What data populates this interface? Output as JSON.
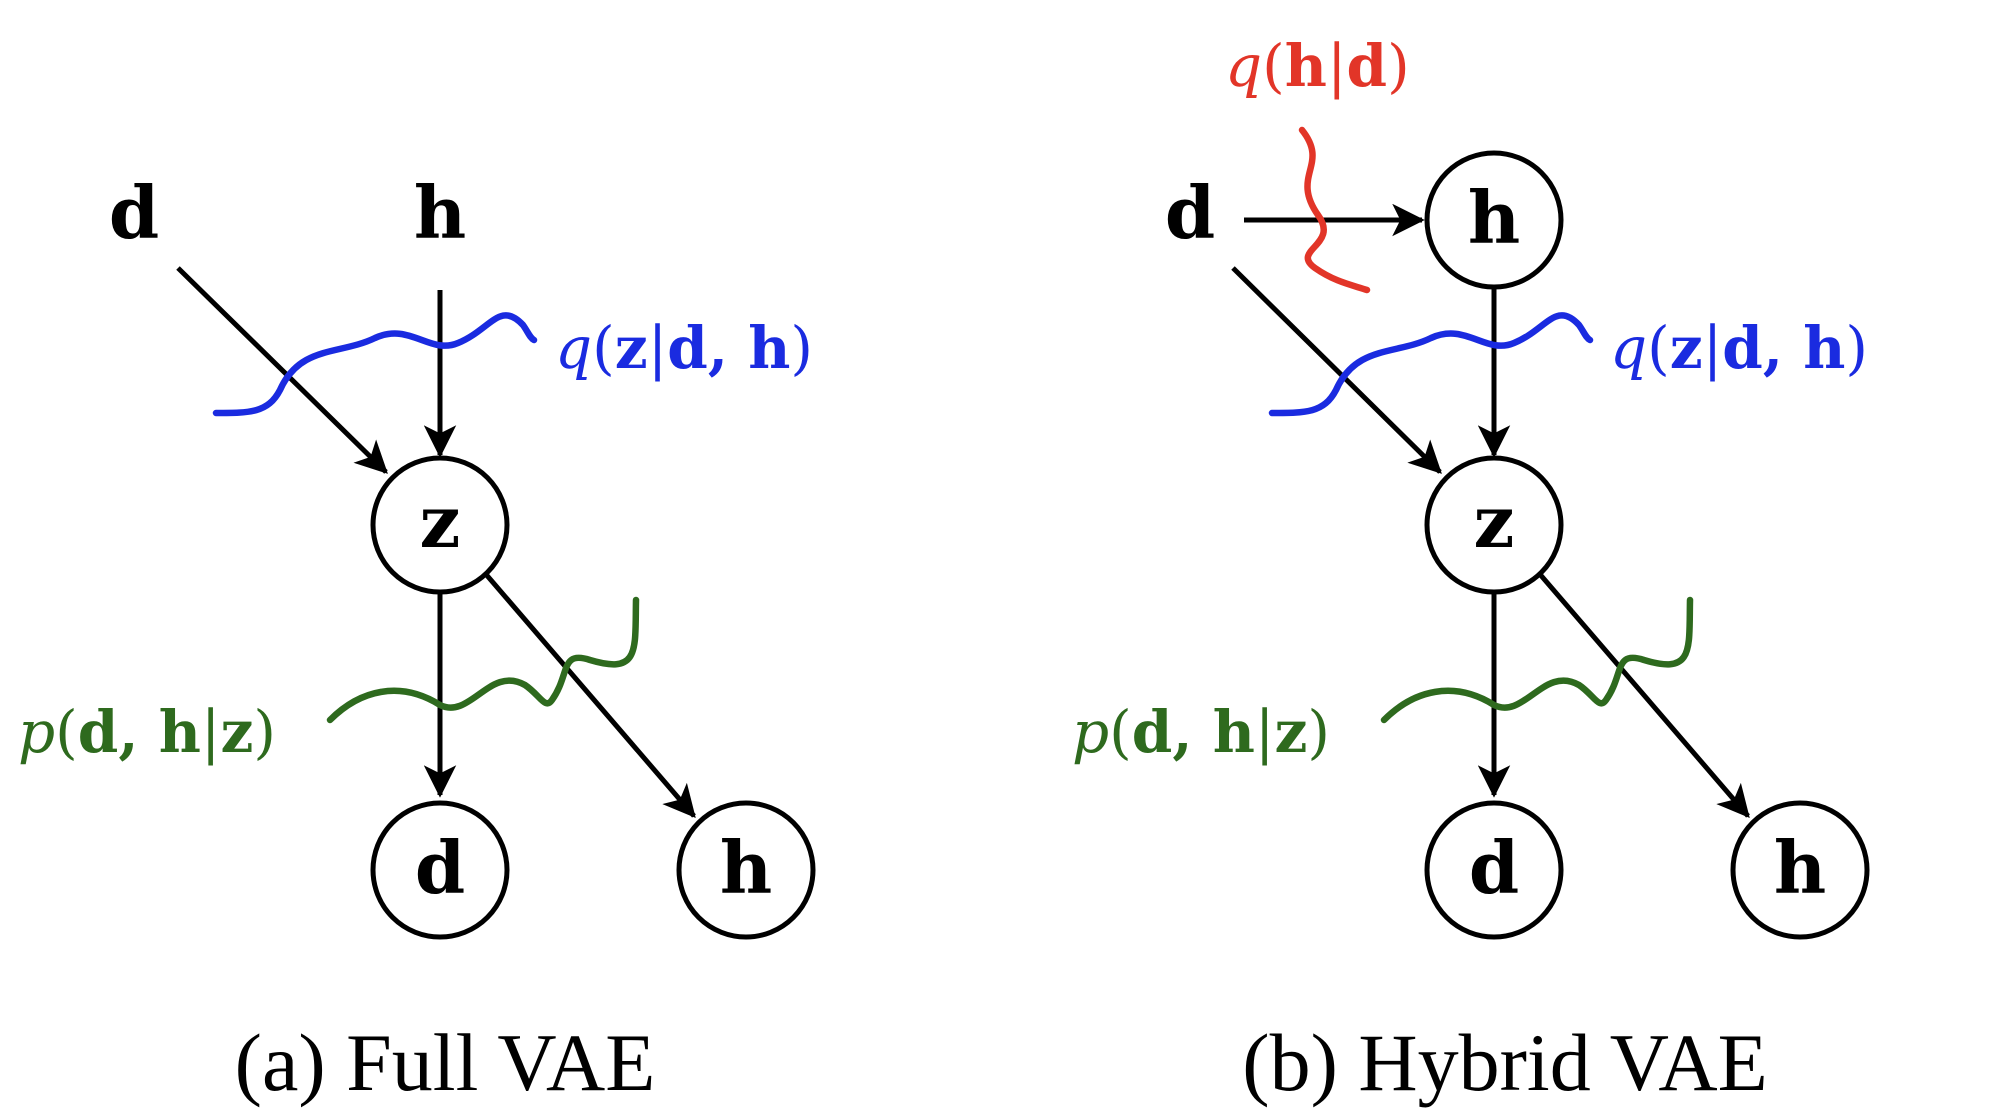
{
  "colors": {
    "encoder_blue": "#1a2be0",
    "decoder_green": "#2e6a1e",
    "inference_red": "#e23528",
    "node_stroke": "#000000"
  },
  "panels": [
    {
      "caption": "(a) Full VAE",
      "inputs": {
        "d": "d",
        "h": "h"
      },
      "nodes": {
        "z": "z",
        "d_out": "d",
        "h_out": "h"
      },
      "encoder": {
        "func": "q",
        "args_bold": "z",
        "sep": "|",
        "cond": "d, h"
      },
      "decoder": {
        "func": "p",
        "args_bold": "d, h",
        "sep": "|",
        "cond": "z"
      }
    },
    {
      "caption": "(b) Hybrid VAE",
      "inputs": {
        "d": "d"
      },
      "nodes": {
        "h_latent": "h",
        "z": "z",
        "d_out": "d",
        "h_out": "h"
      },
      "inference_h": {
        "func": "q",
        "args_bold": "h",
        "sep": "|",
        "cond": "d"
      },
      "encoder": {
        "func": "q",
        "args_bold": "z",
        "sep": "|",
        "cond": "d, h"
      },
      "decoder": {
        "func": "p",
        "args_bold": "d, h",
        "sep": "|",
        "cond": "z"
      }
    }
  ]
}
